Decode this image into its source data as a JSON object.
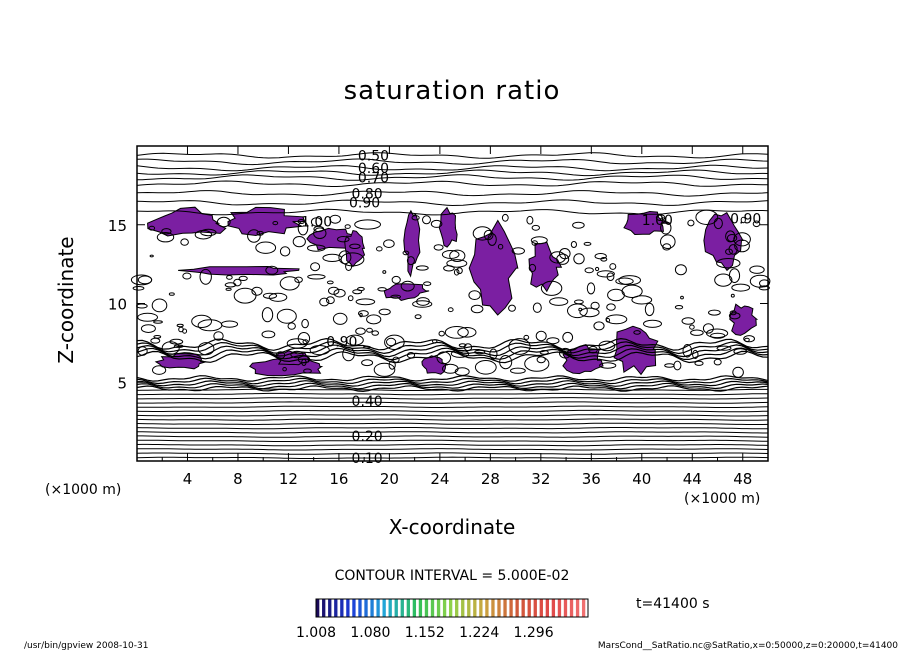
{
  "chart_data": {
    "type": "contour",
    "title": "saturation ratio",
    "xlabel": "X-coordinate",
    "ylabel": "Z-coordinate",
    "x_unit_label": "(×1000 m)",
    "xlim": [
      0,
      50
    ],
    "ylim": [
      0,
      20
    ],
    "x_ticks": [
      "4",
      "8",
      "12",
      "16",
      "20",
      "24",
      "28",
      "32",
      "36",
      "40",
      "44",
      "48"
    ],
    "x_tick_values": [
      4,
      8,
      12,
      16,
      20,
      24,
      28,
      32,
      36,
      40,
      44,
      48
    ],
    "y_ticks": [
      "5",
      "10",
      "15"
    ],
    "y_tick_values": [
      5,
      10,
      15
    ],
    "contour_interval_text": "CONTOUR INTERVAL = 5.000E-02",
    "contour_labels": [
      {
        "text": "0.50",
        "x": 17.5,
        "z": 19.4
      },
      {
        "text": "0.60",
        "x": 17.5,
        "z": 18.6
      },
      {
        "text": "0.70",
        "x": 17.5,
        "z": 18.0
      },
      {
        "text": "0.80",
        "x": 17.0,
        "z": 17.0
      },
      {
        "text": "0.90",
        "x": 16.8,
        "z": 16.4
      },
      {
        "text": "1.00",
        "x": 13.0,
        "z": 15.2
      },
      {
        "text": "1.00",
        "x": 40.0,
        "z": 15.3
      },
      {
        "text": "0.90",
        "x": 47.0,
        "z": 15.4
      },
      {
        "text": "0.90",
        "x": 15.0,
        "z": 7.6
      },
      {
        "text": "0.40",
        "x": 17.0,
        "z": 3.8
      },
      {
        "text": "0.20",
        "x": 17.0,
        "z": 1.6
      },
      {
        "text": "0.10",
        "x": 17.0,
        "z": 0.2
      }
    ],
    "shaded_threshold": "≥ 1.008",
    "colorbar": {
      "ticks": [
        "1.008",
        "1.080",
        "1.152",
        "1.224",
        "1.296"
      ],
      "tick_values": [
        1.008,
        1.08,
        1.152,
        1.224,
        1.296
      ],
      "colors": [
        "#1a0a5a",
        "#1d3bd8",
        "#22a6d8",
        "#2fbf58",
        "#8fd24a",
        "#caa640",
        "#d05a3a",
        "#e04848",
        "#f07070"
      ]
    },
    "shade_color": "#7b1fa2",
    "time_label": "t=41400 s"
  },
  "footer": {
    "left": "/usr/bin/gpview   2008-10-31",
    "right": "MarsCond__SatRatio.nc@SatRatio,x=0:50000,z=0:20000,t=41400"
  }
}
